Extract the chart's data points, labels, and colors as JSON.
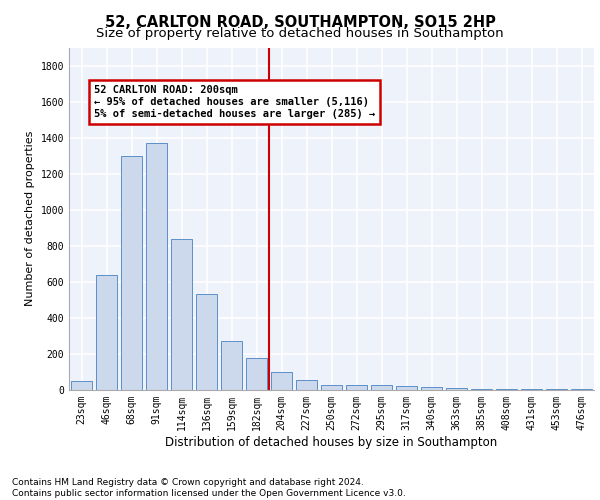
{
  "title": "52, CARLTON ROAD, SOUTHAMPTON, SO15 2HP",
  "subtitle": "Size of property relative to detached houses in Southampton",
  "xlabel": "Distribution of detached houses by size in Southampton",
  "ylabel": "Number of detached properties",
  "categories": [
    "23sqm",
    "46sqm",
    "68sqm",
    "91sqm",
    "114sqm",
    "136sqm",
    "159sqm",
    "182sqm",
    "204sqm",
    "227sqm",
    "250sqm",
    "272sqm",
    "295sqm",
    "317sqm",
    "340sqm",
    "363sqm",
    "385sqm",
    "408sqm",
    "431sqm",
    "453sqm",
    "476sqm"
  ],
  "values": [
    50,
    640,
    1300,
    1370,
    840,
    530,
    270,
    175,
    100,
    57,
    30,
    30,
    25,
    20,
    17,
    12,
    5,
    5,
    5,
    5,
    5
  ],
  "bar_color": "#ccd9ec",
  "bar_edge_color": "#5b8fc9",
  "background_color": "#eef2fb",
  "grid_color": "#ffffff",
  "vline_x_index": 8,
  "vline_color": "#cc0000",
  "annotation_line1": "52 CARLTON ROAD: 200sqm",
  "annotation_line2": "← 95% of detached houses are smaller (5,116)",
  "annotation_line3": "5% of semi-detached houses are larger (285) →",
  "annotation_box_color": "#cc0000",
  "ylim": [
    0,
    1900
  ],
  "yticks": [
    0,
    200,
    400,
    600,
    800,
    1000,
    1200,
    1400,
    1600,
    1800
  ],
  "footer_line1": "Contains HM Land Registry data © Crown copyright and database right 2024.",
  "footer_line2": "Contains public sector information licensed under the Open Government Licence v3.0.",
  "title_fontsize": 10.5,
  "subtitle_fontsize": 9.5,
  "xlabel_fontsize": 8.5,
  "ylabel_fontsize": 8,
  "tick_fontsize": 7,
  "footer_fontsize": 6.5,
  "annotation_fontsize": 7.5
}
